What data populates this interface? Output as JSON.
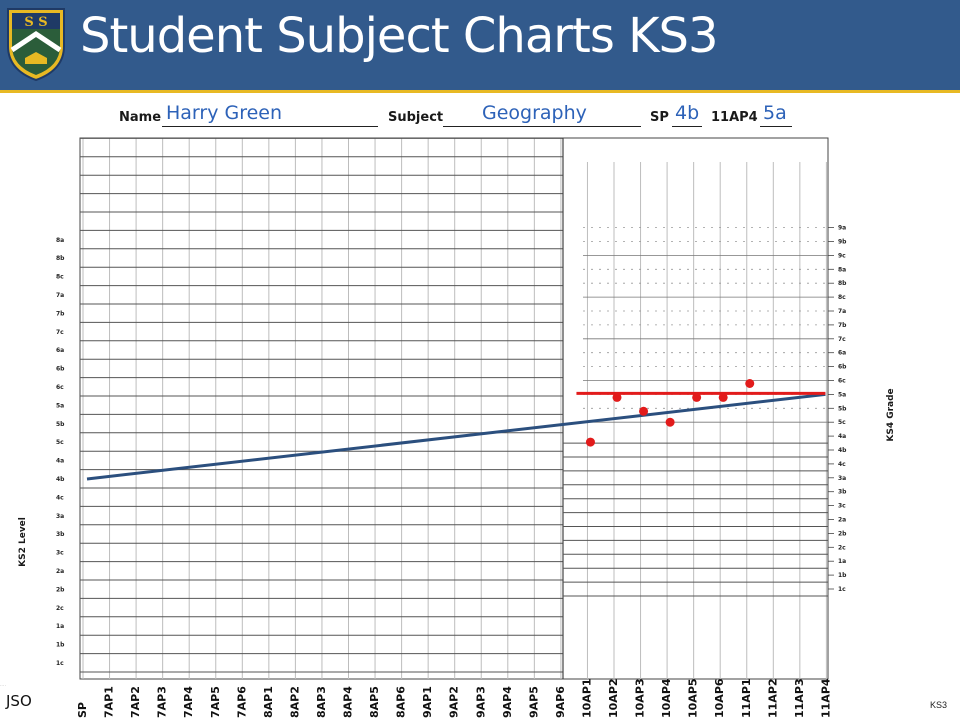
{
  "header": {
    "title": "Student Subject Charts KS3",
    "crest_letters": "S S"
  },
  "colors": {
    "header_bg": "#325a8c",
    "accent_line": "#e8b923",
    "trend_line": "#2b4f7e",
    "target_line": "#e21b1b",
    "points": "#e21b1b",
    "entry_text": "#2d62b8"
  },
  "form": {
    "name_label": "Name",
    "name_value": "Harry Green",
    "subject_label": "Subject",
    "subject_value": "Geography",
    "sp_label": "SP",
    "sp_value": "4b",
    "ap_label": "11AP4",
    "ap_value": "5a"
  },
  "footer": {
    "left": "JSO",
    "right": "KS3"
  },
  "chart_data": {
    "type": "line",
    "xlabel": "",
    "left_axis_title": "KS2 Level",
    "right_axis_title": "KS4 Grade",
    "x": [
      "SP",
      "7AP1",
      "7AP2",
      "7AP3",
      "7AP4",
      "7AP5",
      "7AP6",
      "8AP1",
      "8AP2",
      "8AP3",
      "8AP4",
      "8AP5",
      "8AP6",
      "9AP1",
      "9AP2",
      "9AP3",
      "9AP4",
      "9AP5",
      "9AP6",
      "10AP1",
      "10AP2",
      "10AP3",
      "10AP4",
      "10AP5",
      "10AP6",
      "11AP1",
      "11AP2",
      "11AP3",
      "11AP4"
    ],
    "left_levels": [
      "1c",
      "1b",
      "1a",
      "2c",
      "2b",
      "2a",
      "3c",
      "3b",
      "3a",
      "4c",
      "4b",
      "4a",
      "5c",
      "5b",
      "5a",
      "6c",
      "6b",
      "6a",
      "7c",
      "7b",
      "7a",
      "8c",
      "8b",
      "8a"
    ],
    "right_grades": [
      "1c",
      "1b",
      "1a",
      "2c",
      "2b",
      "2a",
      "3c",
      "3b",
      "3a",
      "4c",
      "4b",
      "4a",
      "5c",
      "5b",
      "5a",
      "6c",
      "6b",
      "6a",
      "7c",
      "7b",
      "7a",
      "8c",
      "8b",
      "8a",
      "9c",
      "9b",
      "9a"
    ],
    "trend_line": {
      "from_x": "SP",
      "from_level": "4b",
      "to_x": "11AP4",
      "to_grade": "5a"
    },
    "target_line": {
      "from_x": "10AP1",
      "to_x": "11AP4",
      "grade": "5a"
    },
    "series": [
      {
        "points": [
          {
            "x": "10AP1",
            "grade": "4a"
          },
          {
            "x": "10AP2",
            "grade": "5a"
          },
          {
            "x": "10AP3",
            "grade": "5b"
          },
          {
            "x": "10AP4",
            "grade": "5c"
          },
          {
            "x": "10AP5",
            "grade": "5a"
          },
          {
            "x": "10AP6",
            "grade": "5a"
          },
          {
            "x": "11AP1",
            "grade": "6c"
          }
        ]
      }
    ]
  }
}
